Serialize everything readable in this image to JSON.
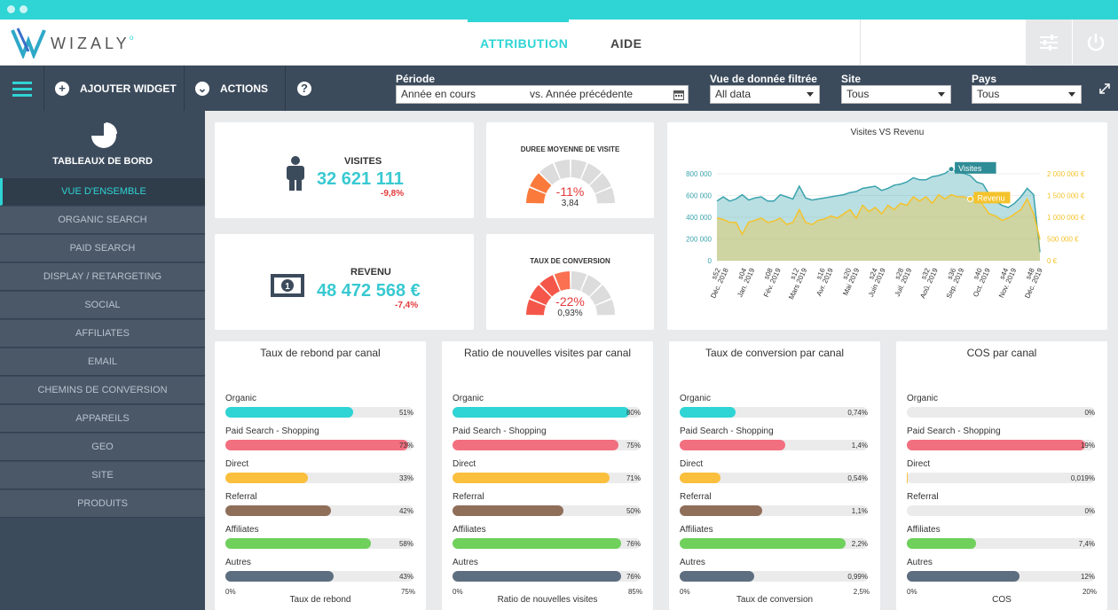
{
  "app": {
    "brand": "WIZALY"
  },
  "topnav": {
    "tabs": [
      {
        "label": "ATTRIBUTION",
        "active": true
      },
      {
        "label": "AIDE",
        "active": false
      }
    ]
  },
  "toolbar": {
    "add_widget": "AJOUTER WIDGET",
    "actions": "ACTIONS",
    "periode_label": "Période",
    "periode_value": "Année en cours",
    "compare_value": "vs.  Année précédente",
    "vue_label": "Vue de donnée filtrée",
    "vue_value": "All data",
    "site_label": "Site",
    "site_value": "Tous",
    "pays_label": "Pays",
    "pays_value": "Tous"
  },
  "sidebar": {
    "title": "TABLEAUX DE BORD",
    "items": [
      {
        "label": "VUE D'ENSEMBLE",
        "active": true
      },
      {
        "label": "ORGANIC SEARCH"
      },
      {
        "label": "PAID SEARCH"
      },
      {
        "label": "DISPLAY / RETARGETING"
      },
      {
        "label": "SOCIAL"
      },
      {
        "label": "AFFILIATES"
      },
      {
        "label": "EMAIL"
      },
      {
        "label": "CHEMINS DE CONVERSION"
      },
      {
        "label": "APPAREILS"
      },
      {
        "label": "GEO"
      },
      {
        "label": "SITE"
      },
      {
        "label": "PRODUITS"
      }
    ]
  },
  "kpis": {
    "visites": {
      "label": "VISITES",
      "value": "32 621 111",
      "delta": "-9,8%"
    },
    "revenu": {
      "label": "REVENU",
      "value": "48 472 568 €",
      "delta": "-7,4%"
    },
    "duree": {
      "title": "DUREE MOYENNE DE VISITE",
      "delta": "-11%",
      "value": "3,84",
      "fraction": 0.22
    },
    "conversion": {
      "title": "TAUX DE CONVERSION",
      "delta": "-22%",
      "value": "0,93%",
      "fraction": 0.44
    }
  },
  "colors": {
    "teal": "#2fd4d4",
    "red": "#fa5c45",
    "orange": "#fa8a3c",
    "dark": "#3c4b5c",
    "accent_text": "#38c9d1"
  },
  "chart_data": {
    "type": "area",
    "title": "Visites VS Revenu",
    "x_tick_labels": [
      "s52\nDéc. 2018",
      "s04\nJan. 2019",
      "s08\nFév. 2019",
      "s12\nMars 2019",
      "s16\nAvr. 2019",
      "s20\nMai 2019",
      "s24\nJuin 2019",
      "s28\nJuil. 2019",
      "s32\nAoû. 2019",
      "s36\nSep. 2019",
      "s40\nOct. 2019",
      "s44\nNov. 2019",
      "s48\nDéc. 2019"
    ],
    "y_left": {
      "ticks": [
        "0",
        "200 000",
        "400 000",
        "600 000",
        "800 000"
      ],
      "range": [
        0,
        900000
      ]
    },
    "y_right": {
      "ticks": [
        "0 €",
        "500 000 €",
        "1 000 000 €",
        "1 500 000 €",
        "2 000 000 €"
      ],
      "range": [
        0,
        2250000
      ]
    },
    "series": [
      {
        "name": "Visites",
        "color": "#3aa3ad",
        "values": [
          560000,
          600000,
          560000,
          580000,
          620000,
          570000,
          590000,
          600000,
          560000,
          560000,
          620000,
          600000,
          580000,
          700000,
          590000,
          570000,
          580000,
          590000,
          600000,
          610000,
          620000,
          640000,
          650000,
          680000,
          690000,
          700000,
          660000,
          680000,
          710000,
          720000,
          740000,
          780000,
          760000,
          760000,
          790000,
          800000,
          820000,
          860000,
          830000,
          820000,
          800000,
          740000,
          720000,
          620000,
          560000,
          520000,
          500000,
          540000,
          600000,
          680000,
          620000,
          80000
        ]
      },
      {
        "name": "Revenu",
        "color": "#f4c32c",
        "values": [
          1000000,
          970000,
          900000,
          900000,
          620000,
          900000,
          950000,
          1000000,
          900000,
          930000,
          1000000,
          850000,
          900000,
          1200000,
          900000,
          850000,
          950000,
          980000,
          1050000,
          1000000,
          1100000,
          1200000,
          1000000,
          1300000,
          1150000,
          1250000,
          1100000,
          1300000,
          1200000,
          1350000,
          1300000,
          1500000,
          1400000,
          1500000,
          1350000,
          1550000,
          1450000,
          1550000,
          1500000,
          1500000,
          1450000,
          1550000,
          1300000,
          1100000,
          1050000,
          950000,
          1000000,
          1100000,
          1200000,
          1450000,
          1100000,
          500000
        ]
      }
    ]
  },
  "bar_cards": [
    {
      "title": "Taux de rebond par canal",
      "axis_title": "Taux de rebond",
      "axis_min": "0%",
      "axis_max": "75%",
      "rows": [
        {
          "label": "Organic",
          "pct": "51%",
          "frac": 0.68
        },
        {
          "label": "Paid Search - Shopping",
          "pct": "73%",
          "frac": 0.973
        },
        {
          "label": "Direct",
          "pct": "33%",
          "frac": 0.44
        },
        {
          "label": "Referral",
          "pct": "42%",
          "frac": 0.56
        },
        {
          "label": "Affiliates",
          "pct": "58%",
          "frac": 0.773
        },
        {
          "label": "Autres",
          "pct": "43%",
          "frac": 0.573
        }
      ]
    },
    {
      "title": "Ratio de nouvelles visites par canal",
      "axis_title": "Ratio de nouvelles visites",
      "axis_min": "0%",
      "axis_max": "85%",
      "rows": [
        {
          "label": "Organic",
          "pct": "80%",
          "frac": 0.94
        },
        {
          "label": "Paid Search - Shopping",
          "pct": "75%",
          "frac": 0.882
        },
        {
          "label": "Direct",
          "pct": "71%",
          "frac": 0.835
        },
        {
          "label": "Referral",
          "pct": "50%",
          "frac": 0.588
        },
        {
          "label": "Affiliates",
          "pct": "76%",
          "frac": 0.894
        },
        {
          "label": "Autres",
          "pct": "76%",
          "frac": 0.894
        }
      ]
    },
    {
      "title": "Taux de conversion par canal",
      "axis_title": "Taux de conversion",
      "axis_min": "0%",
      "axis_max": "2,5%",
      "rows": [
        {
          "label": "Organic",
          "pct": "0,74%",
          "frac": 0.296
        },
        {
          "label": "Paid Search - Shopping",
          "pct": "1,4%",
          "frac": 0.56
        },
        {
          "label": "Direct",
          "pct": "0,54%",
          "frac": 0.216
        },
        {
          "label": "Referral",
          "pct": "1,1%",
          "frac": 0.44
        },
        {
          "label": "Affiliates",
          "pct": "2,2%",
          "frac": 0.88
        },
        {
          "label": "Autres",
          "pct": "0,99%",
          "frac": 0.396
        }
      ]
    },
    {
      "title": "COS par canal",
      "axis_title": "COS",
      "axis_min": "0%",
      "axis_max": "20%",
      "rows": [
        {
          "label": "Organic",
          "pct": "0%",
          "frac": 0
        },
        {
          "label": "Paid Search - Shopping",
          "pct": "19%",
          "frac": 0.95
        },
        {
          "label": "Direct",
          "pct": "0,019%",
          "frac": 0.001
        },
        {
          "label": "Referral",
          "pct": "0%",
          "frac": 0
        },
        {
          "label": "Affiliates",
          "pct": "7,4%",
          "frac": 0.37
        },
        {
          "label": "Autres",
          "pct": "12%",
          "frac": 0.6
        }
      ]
    }
  ],
  "row_colors": [
    "#2fd4d4",
    "#f26f7f",
    "#fbbf3e",
    "#8f6e5a",
    "#6fd05c",
    "#5d6e80"
  ]
}
